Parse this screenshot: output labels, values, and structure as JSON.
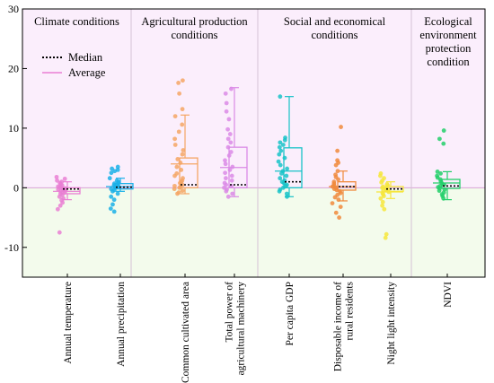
{
  "chart_data": {
    "type": "box",
    "ylim": [
      -15,
      30
    ],
    "yticks": [
      -10,
      0,
      10,
      20,
      30
    ],
    "grid": false,
    "legend": {
      "placement": "top-left",
      "items": [
        {
          "label": "Median",
          "style": "dotted",
          "color": "#000000"
        },
        {
          "label": "Average",
          "style": "solid",
          "color": "#e97fd3"
        }
      ]
    },
    "groups": [
      {
        "title": [
          "Climate conditions"
        ],
        "categories": [
          0,
          1
        ],
        "background": "#fbeefc"
      },
      {
        "title": [
          "Agricultural production",
          "conditions"
        ],
        "categories": [
          2,
          3
        ],
        "background": "#fbeefc"
      },
      {
        "title": [
          "Social and economical",
          "conditions"
        ],
        "categories": [
          4,
          5,
          6
        ],
        "background": "#fbeefc"
      },
      {
        "title": [
          "Ecological",
          "environment",
          "protection",
          "condition"
        ],
        "categories": [
          7
        ],
        "background": "#fbeefc"
      }
    ],
    "series": [
      {
        "name": [
          "Annual temperature"
        ],
        "color": "#e97fd3",
        "q1": -1.0,
        "median": -0.2,
        "q3": 0.0,
        "mean": -0.6,
        "whisker_low": -2.0,
        "whisker_high": 1.0,
        "points": [
          1.8,
          1.5,
          1.2,
          1.0,
          0.8,
          0.6,
          0.4,
          0.2,
          0.1,
          0.0,
          -0.1,
          -0.2,
          -0.3,
          -0.4,
          -0.5,
          -0.6,
          -0.8,
          -1.0,
          -1.2,
          -1.5,
          -1.8,
          -2.1,
          -2.5,
          -3.0,
          -3.6,
          -7.5
        ]
      },
      {
        "name": [
          "Annual precipitation"
        ],
        "color": "#1ab0e8",
        "q1": -0.2,
        "median": 0.1,
        "q3": 0.7,
        "mean": 0.2,
        "whisker_low": -0.6,
        "whisker_high": 1.6,
        "points": [
          3.5,
          3.2,
          3.0,
          2.8,
          2.5,
          1.6,
          1.2,
          1.0,
          0.8,
          0.7,
          0.5,
          0.4,
          0.2,
          0.1,
          0.0,
          -0.2,
          -0.4,
          -0.6,
          -1.0,
          -1.5,
          -2.0,
          -2.8,
          -3.5,
          -4.0
        ]
      },
      {
        "name": [
          "Common cultivated area"
        ],
        "color": "#f5a665",
        "q1": 0.0,
        "median": 0.5,
        "q3": 5.0,
        "mean": 4.0,
        "whisker_low": -1.0,
        "whisker_high": 12.2,
        "points": [
          18.0,
          17.6,
          15.8,
          13.2,
          12.0,
          10.6,
          9.4,
          8.2,
          7.2,
          6.3,
          5.6,
          4.8,
          4.2,
          3.5,
          3.0,
          2.4,
          2.0,
          1.6,
          1.2,
          1.0,
          0.8,
          0.5,
          0.3,
          0.1,
          0.0,
          -0.2,
          -0.5,
          -0.8,
          -1.0
        ]
      },
      {
        "name": [
          "Total power of",
          "agricultural machinery"
        ],
        "color": "#da8ae6",
        "q1": 0.0,
        "median": 0.5,
        "q3": 6.8,
        "mean": 3.4,
        "whisker_low": -1.5,
        "whisker_high": 16.8,
        "points": [
          16.6,
          15.8,
          14.2,
          12.8,
          11.5,
          9.8,
          9.0,
          8.2,
          7.6,
          6.8,
          6.0,
          5.4,
          4.6,
          4.0,
          3.5,
          3.0,
          2.5,
          2.0,
          1.6,
          1.2,
          0.8,
          0.5,
          0.3,
          0.0,
          -0.3,
          -0.6,
          -1.0,
          -1.5
        ]
      },
      {
        "name": [
          "Per capita GDP"
        ],
        "color": "#18c3c8",
        "q1": 0.0,
        "median": 1.0,
        "q3": 6.7,
        "mean": 2.8,
        "whisker_low": -1.5,
        "whisker_high": 15.3,
        "points": [
          15.3,
          8.4,
          8.0,
          7.6,
          7.2,
          6.8,
          6.2,
          5.6,
          5.0,
          4.4,
          3.8,
          3.2,
          2.8,
          2.4,
          2.0,
          1.6,
          1.2,
          1.0,
          0.8,
          0.5,
          0.3,
          0.0,
          -0.3,
          -0.6,
          -1.0,
          -1.5
        ]
      },
      {
        "name": [
          "Disposable income of",
          "rural residents"
        ],
        "color": "#f08a3c",
        "q1": -0.4,
        "median": 0.2,
        "q3": 1.0,
        "mean": 0.2,
        "whisker_low": -2.2,
        "whisker_high": 2.8,
        "points": [
          10.2,
          6.2,
          4.6,
          4.2,
          3.8,
          2.8,
          2.2,
          1.8,
          1.4,
          1.0,
          0.7,
          0.4,
          0.2,
          0.0,
          -0.2,
          -0.4,
          -0.6,
          -0.9,
          -1.2,
          -1.6,
          -2.0,
          -2.6,
          -3.2,
          -4.2,
          -5.0
        ]
      },
      {
        "name": [
          "Night light intensity"
        ],
        "color": "#f6e63c",
        "q1": -0.6,
        "median": -0.2,
        "q3": 0.2,
        "mean": -0.7,
        "whisker_low": -1.8,
        "whisker_high": 1.0,
        "points": [
          2.4,
          2.0,
          1.6,
          1.2,
          0.9,
          0.6,
          0.4,
          0.2,
          0.0,
          -0.2,
          -0.3,
          -0.5,
          -0.7,
          -0.9,
          -1.1,
          -1.4,
          -1.8,
          -2.4,
          -3.0,
          -3.6,
          -7.8,
          -8.4
        ]
      },
      {
        "name": [
          "NDVI"
        ],
        "color": "#22cf6a",
        "q1": -0.1,
        "median": 0.3,
        "q3": 1.4,
        "mean": 0.8,
        "whisker_low": -2.0,
        "whisker_high": 2.7,
        "points": [
          9.6,
          8.2,
          7.4,
          2.7,
          2.4,
          2.0,
          1.7,
          1.4,
          1.1,
          0.8,
          0.5,
          0.3,
          0.1,
          -0.1,
          -0.3,
          -0.5,
          -0.8,
          -1.1,
          -1.4,
          -1.8
        ]
      }
    ]
  },
  "colors": {
    "positive_band": "#fbeefc",
    "negative_band": "#f3fbec",
    "zero_line": "#d9a0d6",
    "divider": "#d6c2d6"
  }
}
